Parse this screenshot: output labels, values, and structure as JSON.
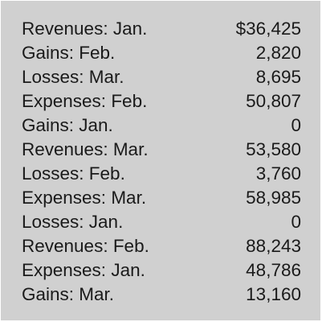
{
  "rows": [
    {
      "label": "Revenues: Jan.",
      "value": "$36,425"
    },
    {
      "label": "Gains: Feb.",
      "value": "2,820"
    },
    {
      "label": "Losses: Mar.",
      "value": "8,695"
    },
    {
      "label": "Expenses: Feb.",
      "value": "50,807"
    },
    {
      "label": "Gains: Jan.",
      "value": "0"
    },
    {
      "label": "Revenues: Mar.",
      "value": "53,580"
    },
    {
      "label": "Losses: Feb.",
      "value": "3,760"
    },
    {
      "label": "Expenses: Mar.",
      "value": "58,985"
    },
    {
      "label": "Losses: Jan.",
      "value": "0"
    },
    {
      "label": "Revenues: Feb.",
      "value": "88,243"
    },
    {
      "label": "Expenses: Jan.",
      "value": "48,786"
    },
    {
      "label": "Gains: Mar.",
      "value": "13,160"
    }
  ]
}
